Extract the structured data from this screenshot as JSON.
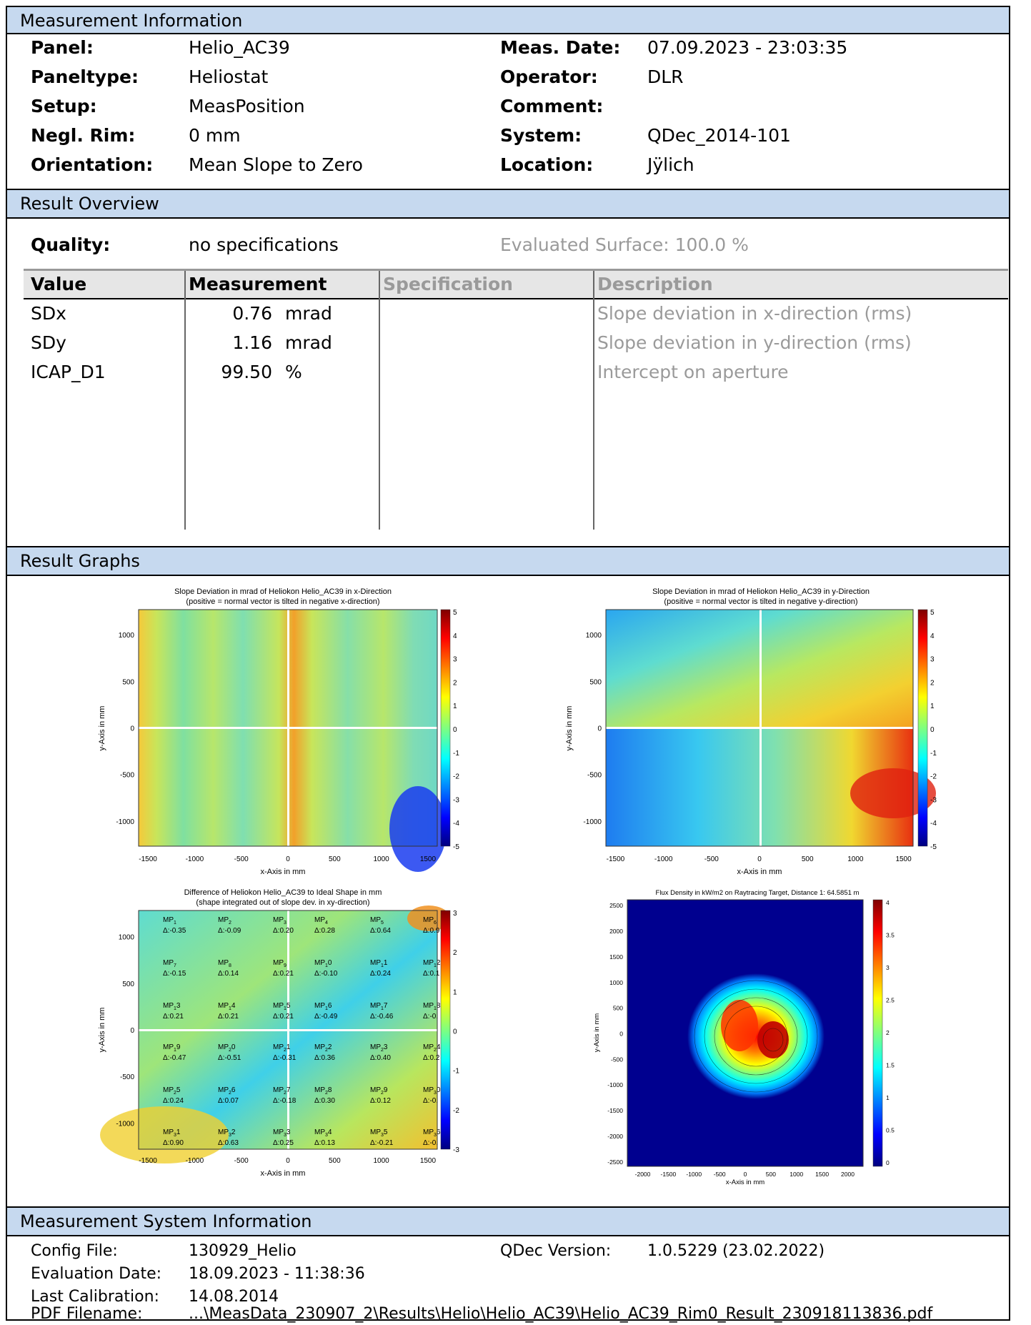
{
  "measurement_info": {
    "header": "Measurement Information",
    "panel_label": "Panel:",
    "panel": "Helio_AC39",
    "paneltype_label": "Paneltype:",
    "paneltype": "Heliostat",
    "setup_label": "Setup:",
    "setup": "MeasPosition",
    "rim_label": "Negl. Rim:",
    "rim": "0 mm",
    "orientation_label": "Orientation:",
    "orientation": "Mean Slope to Zero",
    "date_label": "Meas. Date:",
    "date": "07.09.2023 - 23:03:35",
    "operator_label": "Operator:",
    "operator": "DLR",
    "comment_label": "Comment:",
    "comment": "",
    "system_label": "System:",
    "system": "QDec_2014-101",
    "location_label": "Location:",
    "location": "Jÿlich"
  },
  "result_overview": {
    "header": "Result Overview",
    "quality_label": "Quality:",
    "quality": "no specifications",
    "evaluated_surface": "Evaluated Surface: 100.0 %",
    "columns": [
      "Value",
      "Measurement",
      "Specification",
      "Description"
    ],
    "rows": [
      {
        "name": "SDx",
        "value": "0.76",
        "unit": "mrad",
        "spec": "",
        "desc": "Slope deviation in x-direction (rms)"
      },
      {
        "name": "SDy",
        "value": "1.16",
        "unit": "mrad",
        "spec": "",
        "desc": "Slope deviation in y-direction (rms)"
      },
      {
        "name": "ICAP_D1",
        "value": "99.50",
        "unit": "%",
        "spec": "",
        "desc": "Intercept on aperture"
      }
    ]
  },
  "result_graphs": {
    "header": "Result Graphs",
    "plot_x": {
      "title1": "Slope Deviation in mrad of Heliokon Helio_AC39 in x-Direction",
      "title2": "(positive = normal vector is tilted in negative x-direction)",
      "xlabel": "x-Axis in mm",
      "ylabel": "y-Axis in mm",
      "xticks": [
        "-1500",
        "-1000",
        "-500",
        "0",
        "500",
        "1000",
        "1500"
      ],
      "yticks": [
        "1000",
        "500",
        "0",
        "-500",
        "-1000"
      ],
      "cticks": [
        "5",
        "4",
        "3",
        "2",
        "1",
        "0",
        "-1",
        "-2",
        "-3",
        "-4",
        "-5"
      ]
    },
    "plot_y": {
      "title1": "Slope Deviation in mrad of Heliokon Helio_AC39 in y-Direction",
      "title2": "(positive = normal vector is tilted in negative y-direction)",
      "xlabel": "x-Axis in mm",
      "ylabel": "y-Axis in mm",
      "xticks": [
        "-1500",
        "-1000",
        "-500",
        "0",
        "500",
        "1000",
        "1500"
      ],
      "yticks": [
        "1000",
        "500",
        "0",
        "-500",
        "-1000"
      ],
      "cticks": [
        "5",
        "4",
        "3",
        "2",
        "1",
        "0",
        "-1",
        "-2",
        "-3",
        "-4",
        "-5"
      ]
    },
    "plot_shape": {
      "title1": "Difference of Heliokon Helio_AC39 to Ideal Shape in mm",
      "title2": "(shape integrated out of slope dev. in xy-direction)",
      "xlabel": "x-Axis in mm",
      "ylabel": "y-Axis in mm",
      "xticks": [
        "-1500",
        "-1000",
        "-500",
        "0",
        "500",
        "1000",
        "1500"
      ],
      "yticks": [
        "1000",
        "500",
        "0",
        "-500",
        "-1000"
      ],
      "cticks": [
        "3",
        "2",
        "1",
        "0",
        "-1",
        "-2",
        "-3"
      ],
      "points": [
        {
          "mp": "MP1",
          "sub": "1",
          "delta": "Δ:-0.35"
        },
        {
          "mp": "MP2",
          "sub": "2",
          "delta": "Δ:-0.09"
        },
        {
          "mp": "MP3",
          "sub": "3",
          "delta": "Δ:0.20"
        },
        {
          "mp": "MP4",
          "sub": "4",
          "delta": "Δ:0.28"
        },
        {
          "mp": "MP5",
          "sub": "5",
          "delta": "Δ:0.64"
        },
        {
          "mp": "MP6",
          "sub": "6",
          "delta": "Δ:0.9"
        },
        {
          "mp": "MP7",
          "sub": "7",
          "delta": "Δ:-0.15"
        },
        {
          "mp": "MP8",
          "sub": "8",
          "delta": "Δ:0.14"
        },
        {
          "mp": "MP9",
          "sub": "9",
          "delta": "Δ:0.21"
        },
        {
          "mp": "MP10",
          "sub": "1",
          "delta": "Δ:-0.10"
        },
        {
          "mp": "MP11",
          "sub": "1",
          "delta": "Δ:0.24"
        },
        {
          "mp": "MP12",
          "sub": "1",
          "delta": "Δ:0.1"
        },
        {
          "mp": "MP13",
          "sub": "1",
          "delta": "Δ:0.21"
        },
        {
          "mp": "MP14",
          "sub": "1",
          "delta": "Δ:0.21"
        },
        {
          "mp": "MP15",
          "sub": "1",
          "delta": "Δ:0.21"
        },
        {
          "mp": "MP16",
          "sub": "1",
          "delta": "Δ:-0.49"
        },
        {
          "mp": "MP17",
          "sub": "1",
          "delta": "Δ:-0.46"
        },
        {
          "mp": "MP18",
          "sub": "1",
          "delta": "Δ:-0."
        },
        {
          "mp": "MP19",
          "sub": "1",
          "delta": "Δ:-0.47"
        },
        {
          "mp": "MP20",
          "sub": "2",
          "delta": "Δ:-0.51"
        },
        {
          "mp": "MP21",
          "sub": "2",
          "delta": "Δ:-0.31"
        },
        {
          "mp": "MP22",
          "sub": "2",
          "delta": "Δ:0.36"
        },
        {
          "mp": "MP23",
          "sub": "2",
          "delta": "Δ:0.40"
        },
        {
          "mp": "MP24",
          "sub": "2",
          "delta": "Δ:0.2"
        },
        {
          "mp": "MP25",
          "sub": "2",
          "delta": "Δ:0.24"
        },
        {
          "mp": "MP26",
          "sub": "2",
          "delta": "Δ:0.07"
        },
        {
          "mp": "MP27",
          "sub": "2",
          "delta": "Δ:-0.18"
        },
        {
          "mp": "MP28",
          "sub": "2",
          "delta": "Δ:0.30"
        },
        {
          "mp": "MP29",
          "sub": "2",
          "delta": "Δ:0.12"
        },
        {
          "mp": "MP30",
          "sub": "3",
          "delta": "Δ:-0."
        },
        {
          "mp": "MP31",
          "sub": "3",
          "delta": "Δ:0.90"
        },
        {
          "mp": "MP32",
          "sub": "3",
          "delta": "Δ:0.63"
        },
        {
          "mp": "MP33",
          "sub": "3",
          "delta": "Δ:0.25"
        },
        {
          "mp": "MP34",
          "sub": "3",
          "delta": "Δ:0.13"
        },
        {
          "mp": "MP35",
          "sub": "3",
          "delta": "Δ:-0.21"
        },
        {
          "mp": "MP36",
          "sub": "3",
          "delta": "Δ:-0."
        }
      ]
    },
    "plot_flux": {
      "title1": "Flux Density in kW/m2 on Raytracing Target, Distance 1: 64.5851 m",
      "xlabel": "x-Axis in mm",
      "ylabel": "y-Axis in mm",
      "xticks": [
        "-2000",
        "-1500",
        "-1000",
        "-500",
        "0",
        "500",
        "1000",
        "1500",
        "2000"
      ],
      "yticks": [
        "2500",
        "2000",
        "1500",
        "1000",
        "500",
        "0",
        "-500",
        "-1000",
        "-1500",
        "-2000",
        "-2500"
      ],
      "cticks": [
        "4",
        "3.5",
        "3",
        "2.5",
        "2",
        "1.5",
        "1",
        "0.5",
        "0"
      ]
    }
  },
  "system_info": {
    "header": "Measurement System Information",
    "config_label": "Config File:",
    "config": "130929_Helio",
    "eval_label": "Evaluation Date:",
    "eval": "18.09.2023 - 11:38:36",
    "calib_label": "Last Calibration:",
    "calib": "14.08.2014",
    "pdf_label": "PDF Filename:",
    "pdf": "...\\MeasData_230907_2\\Results\\Helio\\Helio_AC39\\Helio_AC39_Rim0_Result_230918113836.pdf",
    "version_label": "QDec Version:",
    "version": "1.0.5229 (23.02.2022)"
  },
  "colors": {
    "section_header_bg": "#c6d9ef",
    "grey_text": "#9a9a9a"
  }
}
